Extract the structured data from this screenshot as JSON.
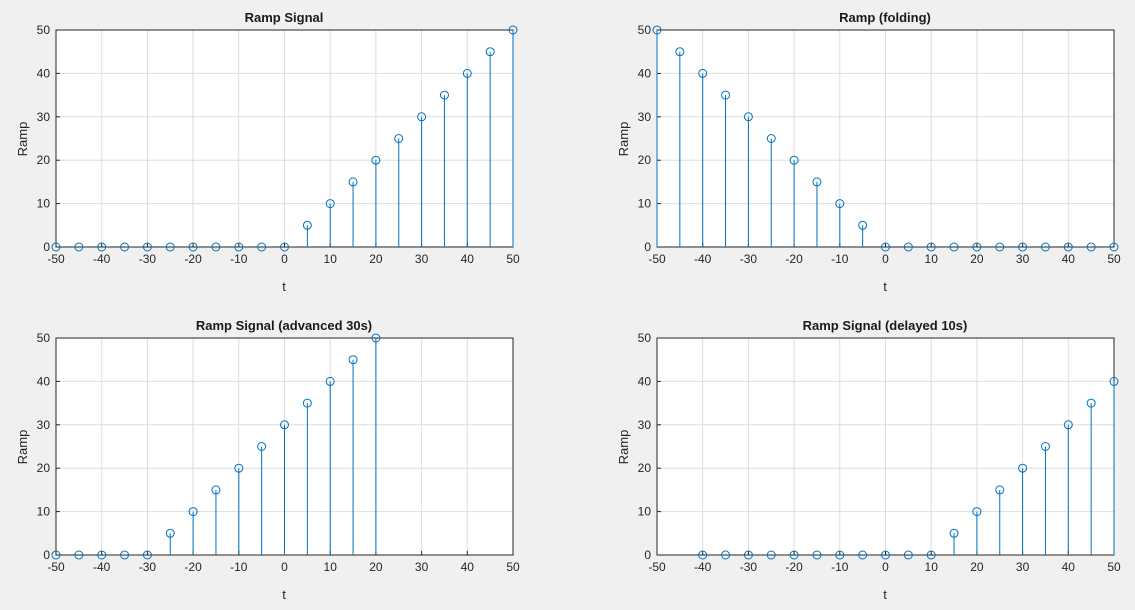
{
  "figure": {
    "background": "#f0f0f0",
    "stem_color": "#0072bd",
    "grid_color": "#dddddd",
    "axis_color": "#262626"
  },
  "chart_data": [
    {
      "type": "stem",
      "title": "Ramp Signal",
      "xlabel": "t",
      "ylabel": "Ramp",
      "xlim": [
        -50,
        50
      ],
      "ylim": [
        0,
        50
      ],
      "xticks": [
        "-50",
        "-40",
        "-30",
        "-20",
        "-10",
        "0",
        "10",
        "20",
        "30",
        "40",
        "50"
      ],
      "yticks": [
        "0",
        "10",
        "20",
        "30",
        "40",
        "50"
      ],
      "grid": true,
      "x": [
        -50,
        -45,
        -40,
        -35,
        -30,
        -25,
        -20,
        -15,
        -10,
        -5,
        0,
        5,
        10,
        15,
        20,
        25,
        30,
        35,
        40,
        45,
        50
      ],
      "y": [
        0,
        0,
        0,
        0,
        0,
        0,
        0,
        0,
        0,
        0,
        0,
        5,
        10,
        15,
        20,
        25,
        30,
        35,
        40,
        45,
        50
      ]
    },
    {
      "type": "stem",
      "title": "Ramp (folding)",
      "xlabel": "t",
      "ylabel": "Ramp",
      "xlim": [
        -50,
        50
      ],
      "ylim": [
        0,
        50
      ],
      "xticks": [
        "-50",
        "-40",
        "-30",
        "-20",
        "-10",
        "0",
        "10",
        "20",
        "30",
        "40",
        "50"
      ],
      "yticks": [
        "0",
        "10",
        "20",
        "30",
        "40",
        "50"
      ],
      "grid": true,
      "x": [
        -50,
        -45,
        -40,
        -35,
        -30,
        -25,
        -20,
        -15,
        -10,
        -5,
        0,
        5,
        10,
        15,
        20,
        25,
        30,
        35,
        40,
        45,
        50
      ],
      "y": [
        50,
        45,
        40,
        35,
        30,
        25,
        20,
        15,
        10,
        5,
        0,
        0,
        0,
        0,
        0,
        0,
        0,
        0,
        0,
        0,
        0
      ]
    },
    {
      "type": "stem",
      "title": "Ramp Signal (advanced 30s)",
      "xlabel": "t",
      "ylabel": "Ramp",
      "xlim": [
        -50,
        50
      ],
      "ylim": [
        0,
        50
      ],
      "xticks": [
        "-50",
        "-40",
        "-30",
        "-20",
        "-10",
        "0",
        "10",
        "20",
        "30",
        "40",
        "50"
      ],
      "yticks": [
        "0",
        "10",
        "20",
        "30",
        "40",
        "50"
      ],
      "grid": true,
      "x": [
        -50,
        -45,
        -40,
        -35,
        -30,
        -25,
        -20,
        -15,
        -10,
        -5,
        0,
        5,
        10,
        15,
        20
      ],
      "y": [
        0,
        0,
        0,
        0,
        0,
        5,
        10,
        15,
        20,
        25,
        30,
        35,
        40,
        45,
        50
      ]
    },
    {
      "type": "stem",
      "title": "Ramp Signal (delayed 10s)",
      "xlabel": "t",
      "ylabel": "Ramp",
      "xlim": [
        -50,
        50
      ],
      "ylim": [
        0,
        50
      ],
      "xticks": [
        "-50",
        "-40",
        "-30",
        "-20",
        "-10",
        "0",
        "10",
        "20",
        "30",
        "40",
        "50"
      ],
      "yticks": [
        "0",
        "10",
        "20",
        "30",
        "40",
        "50"
      ],
      "grid": true,
      "x": [
        -40,
        -35,
        -30,
        -25,
        -20,
        -15,
        -10,
        -5,
        0,
        5,
        10,
        15,
        20,
        25,
        30,
        35,
        40,
        45,
        50
      ],
      "y": [
        0,
        0,
        0,
        0,
        0,
        0,
        0,
        0,
        0,
        0,
        0,
        5,
        10,
        15,
        20,
        25,
        30,
        35,
        40
      ]
    }
  ]
}
